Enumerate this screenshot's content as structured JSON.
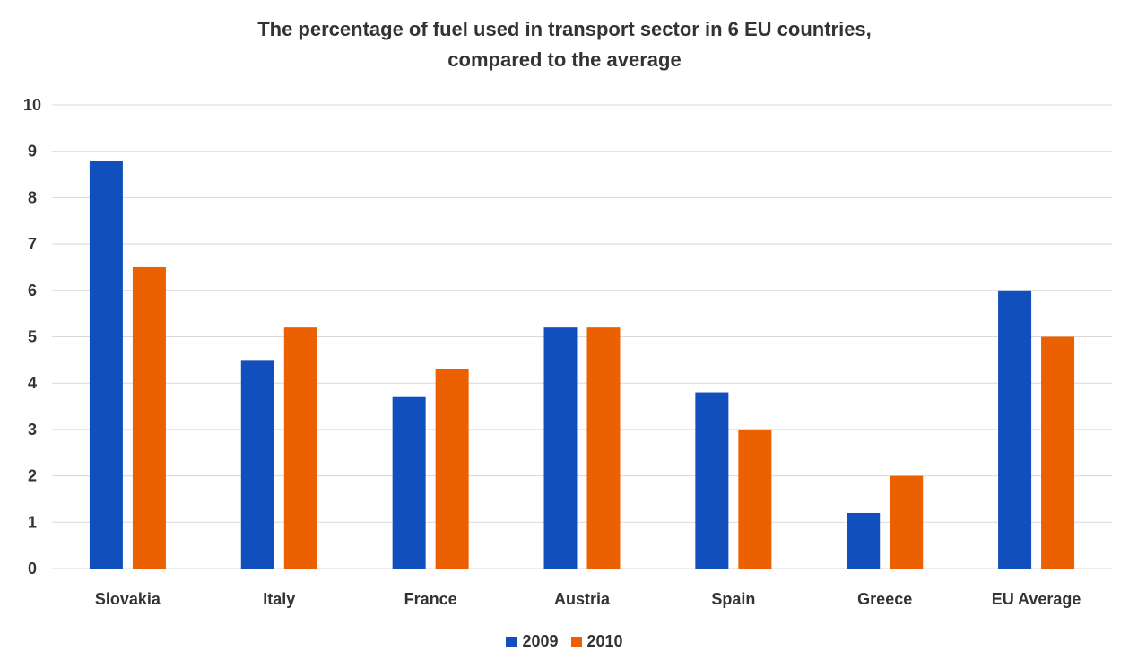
{
  "chart_data": {
    "type": "bar",
    "title": "The percentage of fuel used in transport sector in 6 EU countries,",
    "subtitle": "compared to the average",
    "xlabel": "",
    "ylabel": "",
    "ylim": [
      0,
      10
    ],
    "yticks": [
      "0",
      "1",
      "2",
      "3",
      "4",
      "5",
      "6",
      "7",
      "8",
      "9",
      "10"
    ],
    "grid": true,
    "legend_position": "bottom",
    "categories": [
      "Slovakia",
      "Italy",
      "France",
      "Austria",
      "Spain",
      "Greece",
      "EU Average"
    ],
    "series": [
      {
        "name": "2009",
        "color": "#1150BC",
        "values": [
          8.8,
          4.5,
          3.7,
          5.2,
          3.8,
          1.2,
          6.0
        ]
      },
      {
        "name": "2010",
        "color": "#EB6000",
        "values": [
          6.5,
          5.2,
          4.3,
          5.2,
          3.0,
          2.0,
          5.0
        ]
      }
    ]
  }
}
